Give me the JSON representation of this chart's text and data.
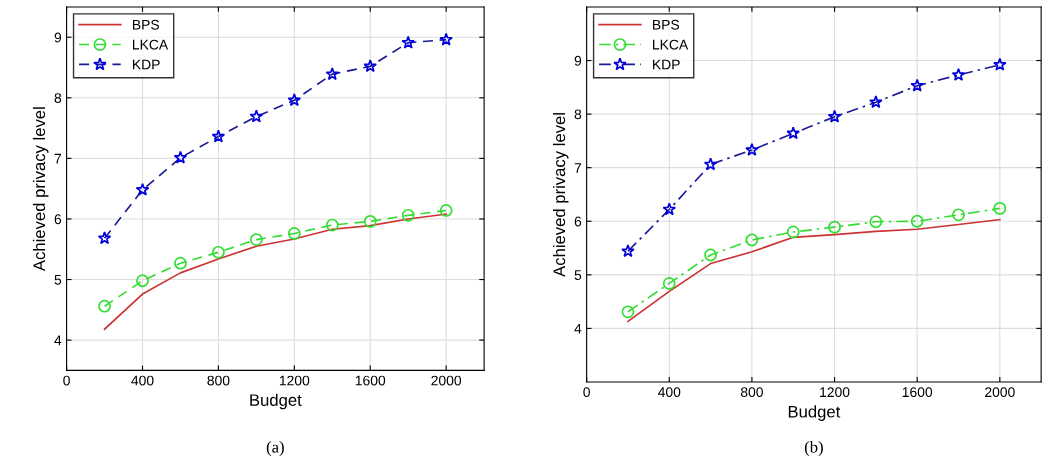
{
  "chart_data": [
    {
      "type": "line",
      "xlabel": "Budget",
      "ylabel": "Achieved privacy level",
      "annotations": [
        "(a)"
      ],
      "x": [
        200,
        400,
        600,
        800,
        1000,
        1200,
        1400,
        1600,
        1800,
        2000
      ],
      "series": [
        {
          "name": "BPS",
          "color": "#cc3333",
          "marker": "none",
          "line_style": "solid",
          "values": [
            4.18,
            4.76,
            5.11,
            5.34,
            5.55,
            5.67,
            5.83,
            5.89,
            6.0,
            6.08
          ]
        },
        {
          "name": "LKCA",
          "color": "#33dd33",
          "marker": "circle",
          "line_style": "dashed",
          "values": [
            4.56,
            4.98,
            5.27,
            5.45,
            5.66,
            5.76,
            5.9,
            5.96,
            6.06,
            6.14
          ]
        },
        {
          "name": "KDP",
          "color": "#1a1a99",
          "marker": "star",
          "line_style": "dashed",
          "values": [
            5.68,
            6.48,
            7.01,
            7.36,
            7.69,
            7.96,
            8.39,
            8.52,
            8.91,
            8.96
          ]
        }
      ],
      "xlim": [
        0,
        2200
      ],
      "xticks": [
        0,
        400,
        800,
        1200,
        1600,
        2000
      ],
      "ylim": [
        3.5,
        9.5
      ],
      "yticks": [
        4,
        5,
        6,
        7,
        8,
        9
      ],
      "grid": true,
      "legend": "top left"
    },
    {
      "type": "line",
      "xlabel": "Budget",
      "ylabel": "Achieved privacy level",
      "annotations": [
        "(b)"
      ],
      "x": [
        200,
        400,
        600,
        800,
        1000,
        1200,
        1400,
        1600,
        1800,
        2000
      ],
      "series": [
        {
          "name": "BPS",
          "color": "#cc3333",
          "marker": "none",
          "line_style": "solid",
          "values": [
            4.13,
            4.69,
            5.21,
            5.43,
            5.7,
            5.75,
            5.81,
            5.85,
            5.94,
            6.03
          ]
        },
        {
          "name": "LKCA",
          "color": "#33dd33",
          "marker": "circle",
          "line_style": "dashdot",
          "values": [
            4.31,
            4.84,
            5.37,
            5.65,
            5.8,
            5.89,
            5.99,
            6.0,
            6.12,
            6.24
          ]
        },
        {
          "name": "KDP",
          "color": "#1a1a99",
          "marker": "star",
          "line_style": "dashdot",
          "values": [
            5.44,
            6.22,
            7.06,
            7.33,
            7.64,
            7.95,
            8.22,
            8.53,
            8.73,
            8.92
          ]
        }
      ],
      "xlim": [
        0,
        2200
      ],
      "xticks": [
        0,
        400,
        800,
        1200,
        1600,
        2000
      ],
      "ylim": [
        3,
        10
      ],
      "yticks": [
        4,
        5,
        6,
        7,
        8,
        9
      ],
      "grid": true,
      "legend": "top left"
    }
  ]
}
